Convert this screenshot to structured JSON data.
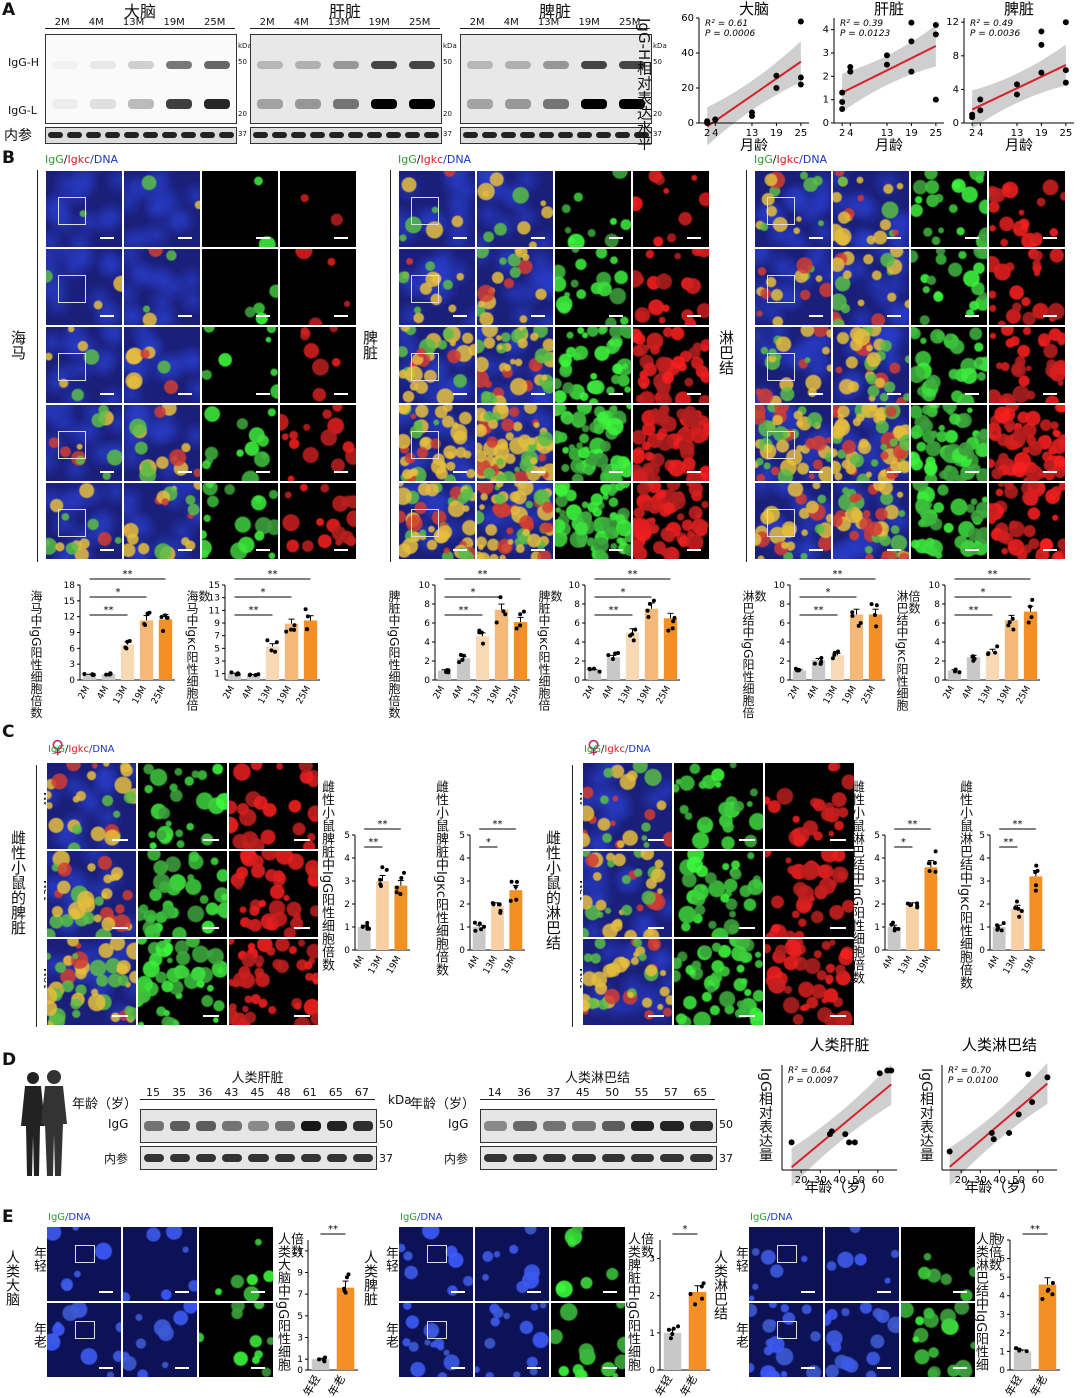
{
  "panelA": {
    "letter": "A",
    "blots": [
      {
        "title": "大脑",
        "lanes": [
          "2M",
          "4M",
          "13M",
          "19M",
          "25M"
        ]
      },
      {
        "title": "肝脏",
        "lanes": [
          "2M",
          "4M",
          "13M",
          "19M",
          "25M"
        ]
      },
      {
        "title": "脾脏",
        "lanes": [
          "2M",
          "4M",
          "13M",
          "19M",
          "25M"
        ]
      }
    ],
    "igg_h": "IgG-H",
    "igg_l": "IgG-L",
    "loading": "内参",
    "kda": "kDa",
    "mw": [
      "50",
      "20",
      "37"
    ],
    "ylabel": "IgG-H相对表达水平",
    "xlabel": "月龄"
  },
  "panelB": {
    "letter": "B",
    "stain_green": "IgG",
    "stain_sep": "/",
    "stain_red": "Igkc",
    "stain_blue": "/DNA",
    "tissues": [
      "海马",
      "脾脏",
      "淋巴结"
    ],
    "ages": [
      "2M",
      "4M",
      "13M",
      "19M",
      "25M"
    ],
    "bar_ylabels": [
      "海马中IgG阳性细胞倍数",
      "海马中Igκc阳性细胞倍数",
      "脾脏中IgG阳性细胞倍数",
      "脾脏中Igκc阳性细胞倍数",
      "淋巴结中IgG阳性细胞倍数",
      "淋巴结中Igκc阳性细胞倍数"
    ],
    "sig": [
      "*",
      "**"
    ]
  },
  "panelC": {
    "letter": "C",
    "female": "♀",
    "ages": [
      "4M",
      "13M",
      "19M"
    ],
    "tissues": [
      "雌性小鼠的脾脏",
      "雌性小鼠的淋巴结"
    ],
    "bar_ylabels": [
      "雌性小鼠脾脏中IgG阳性细胞倍数",
      "雌性小鼠脾脏中Igκc阳性细胞倍数",
      "雌性小鼠淋巴结中IgG阳性细胞倍数",
      "雌性小鼠淋巴结中Igκc阳性细胞倍数"
    ]
  },
  "panelD": {
    "letter": "D",
    "age_label": "年龄（岁）",
    "liver_title": "人类肝脏",
    "liver_ages": [
      "15",
      "35",
      "36",
      "43",
      "45",
      "48",
      "61",
      "65",
      "67"
    ],
    "ln_title": "人类淋巴结",
    "ln_ages": [
      "14",
      "36",
      "37",
      "45",
      "50",
      "55",
      "57",
      "65"
    ],
    "igg": "IgG",
    "loading": "内参",
    "kda": "kDa",
    "mw": [
      "50",
      "37"
    ],
    "ylabel": "IgG相对表达量",
    "xlabel": "年龄（岁）"
  },
  "panelE": {
    "letter": "E",
    "stain_green": "IgG",
    "stain_blue": "/DNA",
    "tissues": [
      "人类大脑",
      "人类脾脏",
      "人类淋巴结"
    ],
    "young": "年轻",
    "old": "年老",
    "bar_ylabels": [
      "人类大脑中IgG阳性细胞倍数",
      "人类脾脏中IgG阳性细胞倍数",
      "人类淋巴结中IgG阳性细胞倍数"
    ],
    "sig": [
      "**",
      "*",
      "**"
    ]
  },
  "chart_data": [
    {
      "type": "scatter",
      "title": "大脑",
      "xlabel": "月龄",
      "ylabel": "IgG-H相对表达水平",
      "x_ticks": [
        2,
        4,
        13,
        19,
        25
      ],
      "y_ticks": [
        0,
        20,
        40,
        60
      ],
      "ylim": [
        0,
        60
      ],
      "stats": [
        "R² = 0.61",
        "P = 0.0006"
      ],
      "x": [
        2,
        2,
        4,
        4,
        13,
        13,
        19,
        19,
        25,
        25,
        25
      ],
      "y": [
        0,
        1,
        2,
        2,
        4,
        6,
        20,
        27,
        22,
        26,
        58
      ],
      "fit": {
        "x": [
          2,
          25
        ],
        "y": [
          -2,
          35
        ]
      }
    },
    {
      "type": "scatter",
      "title": "肝脏",
      "xlabel": "月龄",
      "ylabel": "",
      "x_ticks": [
        2,
        4,
        13,
        19,
        25
      ],
      "y_ticks": [
        0,
        1,
        2,
        3,
        4
      ],
      "ylim": [
        0,
        4.5
      ],
      "stats": [
        "R² = 0.39",
        "P = 0.0123"
      ],
      "x": [
        2,
        2,
        2,
        4,
        4,
        13,
        13,
        19,
        19,
        19,
        25,
        25,
        25
      ],
      "y": [
        0.6,
        0.9,
        1.3,
        2.2,
        2.4,
        2.5,
        2.9,
        2.2,
        3.5,
        4.3,
        1.0,
        3.8,
        4.2
      ],
      "fit": {
        "x": [
          2,
          25
        ],
        "y": [
          1.3,
          3.3
        ]
      }
    },
    {
      "type": "scatter",
      "title": "脾脏",
      "xlabel": "月龄",
      "ylabel": "",
      "x_ticks": [
        2,
        4,
        13,
        19,
        25
      ],
      "y_ticks": [
        0,
        4,
        8,
        12
      ],
      "ylim": [
        0,
        12.5
      ],
      "stats": [
        "R² = 0.49",
        "P = 0.0036"
      ],
      "x": [
        2,
        2,
        4,
        4,
        13,
        13,
        19,
        19,
        19,
        25,
        25,
        25
      ],
      "y": [
        0.7,
        1.0,
        1.5,
        2.8,
        3.4,
        4.6,
        6.0,
        9.3,
        10.9,
        4.8,
        6.3,
        12.0
      ],
      "fit": {
        "x": [
          2,
          25
        ],
        "y": [
          1.6,
          6.9
        ]
      }
    },
    {
      "type": "bar",
      "title": "",
      "ylabel": "海马中IgG阳性细胞倍数",
      "categories": [
        "2M",
        "4M",
        "13M",
        "19M",
        "25M"
      ],
      "values": [
        1,
        1.1,
        6.7,
        11.3,
        11.5
      ],
      "ylim": [
        0,
        18
      ],
      "y_ticks": [
        0,
        3,
        6,
        9,
        12,
        15,
        18
      ]
    },
    {
      "type": "bar",
      "title": "",
      "ylabel": "海马中Igκc阳性细胞倍数",
      "categories": [
        "2M",
        "4M",
        "13M",
        "19M",
        "25M"
      ],
      "values": [
        1,
        0.8,
        5.3,
        8.9,
        9.4
      ],
      "ylim": [
        0,
        15
      ],
      "y_ticks": [
        1,
        3,
        5,
        7,
        9,
        11,
        13,
        15
      ]
    },
    {
      "type": "bar",
      "title": "",
      "ylabel": "脾脏中IgG阳性细胞倍数",
      "categories": [
        "2M",
        "4M",
        "13M",
        "19M",
        "25M"
      ],
      "values": [
        1,
        2.3,
        4.6,
        7.4,
        6.1
      ],
      "ylim": [
        0,
        10
      ],
      "y_ticks": [
        0,
        2,
        4,
        6,
        8,
        10
      ]
    },
    {
      "type": "bar",
      "title": "",
      "ylabel": "脾脏中Igκc阳性细胞倍数",
      "categories": [
        "2M",
        "4M",
        "13M",
        "19M",
        "25M"
      ],
      "values": [
        1,
        2.4,
        5.0,
        7.5,
        6.5
      ],
      "ylim": [
        0,
        10
      ],
      "y_ticks": [
        0,
        2,
        4,
        6,
        8,
        10
      ]
    },
    {
      "type": "bar",
      "title": "",
      "ylabel": "淋巴结中IgG阳性细胞倍数",
      "categories": [
        "2M",
        "4M",
        "13M",
        "19M",
        "25M"
      ],
      "values": [
        1,
        2.1,
        2.6,
        6.9,
        6.9
      ],
      "ylim": [
        0,
        10
      ],
      "y_ticks": [
        0,
        2,
        4,
        6,
        8,
        10
      ]
    },
    {
      "type": "bar",
      "title": "",
      "ylabel": "淋巴结中Igκc阳性细胞倍数",
      "categories": [
        "2M",
        "4M",
        "13M",
        "19M",
        "25M"
      ],
      "values": [
        1,
        2.4,
        3.0,
        6.3,
        7.2
      ],
      "ylim": [
        0,
        10
      ],
      "y_ticks": [
        0,
        2,
        4,
        6,
        8,
        10
      ]
    },
    {
      "type": "bar",
      "title": "",
      "ylabel": "雌性小鼠脾脏中IgG阳性细胞倍数",
      "categories": [
        "4M",
        "13M",
        "19M"
      ],
      "values": [
        1,
        3.0,
        2.8
      ],
      "ylim": [
        0,
        5
      ],
      "y_ticks": [
        0,
        1,
        2,
        3,
        4,
        5
      ]
    },
    {
      "type": "bar",
      "title": "",
      "ylabel": "雌性小鼠脾脏中Igκc阳性细胞倍数",
      "categories": [
        "4M",
        "13M",
        "19M"
      ],
      "values": [
        1,
        1.9,
        2.6
      ],
      "ylim": [
        0,
        5
      ],
      "y_ticks": [
        0,
        1,
        2,
        3,
        4,
        5
      ]
    },
    {
      "type": "bar",
      "title": "",
      "ylabel": "雌性小鼠淋巴结中IgG阳性细胞倍数",
      "categories": [
        "4M",
        "13M",
        "19M"
      ],
      "values": [
        1,
        1.9,
        3.6
      ],
      "ylim": [
        0,
        5
      ],
      "y_ticks": [
        0,
        1,
        2,
        3,
        4,
        5
      ]
    },
    {
      "type": "bar",
      "title": "",
      "ylabel": "雌性小鼠淋巴结中Igκc阳性细胞倍数",
      "categories": [
        "4M",
        "13M",
        "19M"
      ],
      "values": [
        1,
        1.8,
        3.2
      ],
      "ylim": [
        0,
        5
      ],
      "y_ticks": [
        0,
        1,
        2,
        3,
        4,
        5
      ]
    },
    {
      "type": "scatter",
      "title": "人类肝脏",
      "xlabel": "年龄（岁）",
      "ylabel": "IgG相对表达量",
      "x_ticks": [
        20,
        30,
        40,
        50,
        60
      ],
      "stats": [
        "R² = 0.64",
        "P = 0.0097"
      ],
      "x": [
        15,
        35,
        36,
        43,
        45,
        48,
        61,
        65,
        67
      ],
      "y": [
        1.0,
        1.3,
        1.4,
        1.3,
        1.0,
        1.0,
        3.5,
        3.6,
        3.6
      ],
      "fit": {
        "x": [
          15,
          67
        ],
        "y": [
          0.1,
          3.1
        ]
      }
    },
    {
      "type": "scatter",
      "title": "人类淋巴结",
      "xlabel": "年龄（岁）",
      "ylabel": "IgG相对表达量",
      "x_ticks": [
        20,
        30,
        40,
        50,
        60
      ],
      "stats": [
        "R² = 0.70",
        "P = 0.0100"
      ],
      "x": [
        14,
        36,
        37,
        45,
        50,
        55,
        57,
        65
      ],
      "y": [
        0.6,
        1.2,
        1.0,
        1.2,
        1.8,
        3.1,
        2.2,
        3.0
      ],
      "fit": {
        "x": [
          14,
          65
        ],
        "y": [
          0.1,
          2.8
        ]
      }
    },
    {
      "type": "bar",
      "title": "",
      "ylabel": "人类大脑中IgG阳性细胞倍数",
      "categories": [
        "年轻",
        "年老"
      ],
      "values": [
        1,
        7.6
      ],
      "ylim": [
        0,
        12
      ],
      "y_ticks": [
        0,
        1,
        3,
        5,
        7,
        9,
        11
      ]
    },
    {
      "type": "bar",
      "title": "",
      "ylabel": "人类脾脏中IgG阳性细胞倍数",
      "categories": [
        "年轻",
        "年老"
      ],
      "values": [
        1,
        2.1
      ],
      "ylim": [
        0,
        3.5
      ],
      "y_ticks": [
        0,
        1,
        2,
        3
      ]
    },
    {
      "type": "bar",
      "title": "",
      "ylabel": "人类淋巴结中IgG阳性细胞倍数",
      "categories": [
        "年轻",
        "年老"
      ],
      "values": [
        1,
        4.6
      ],
      "ylim": [
        0,
        7
      ],
      "y_ticks": [
        0,
        1,
        2,
        3,
        4,
        5,
        6,
        7
      ]
    }
  ]
}
